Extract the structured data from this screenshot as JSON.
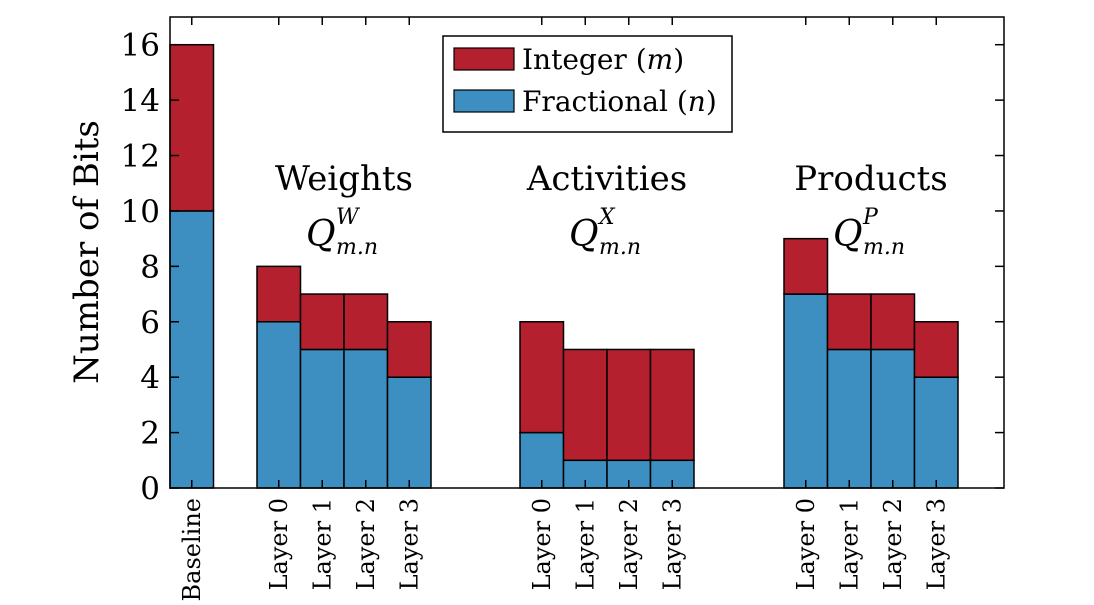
{
  "chart_data": {
    "type": "bar",
    "stacked": true,
    "title": "",
    "xlabel": "",
    "ylabel": "Number of Bits",
    "ylim": [
      0,
      17
    ],
    "yticks": [
      0,
      2,
      4,
      6,
      8,
      10,
      12,
      14,
      16
    ],
    "grid": false,
    "legend_position": "top-center",
    "categories": [
      "Baseline",
      "Layer 0",
      "Layer 1",
      "Layer 2",
      "Layer 3",
      "Layer 0",
      "Layer 1",
      "Layer 2",
      "Layer 3",
      "Layer 0",
      "Layer 1",
      "Layer 2",
      "Layer 3"
    ],
    "series": [
      {
        "name": "Fractional",
        "symbol": "n",
        "color": "#3d8fc1",
        "values": [
          10,
          6,
          5,
          5,
          4,
          2,
          1,
          1,
          1,
          7,
          5,
          5,
          4
        ]
      },
      {
        "name": "Integer",
        "symbol": "m",
        "color": "#b5202f",
        "values": [
          6,
          2,
          2,
          2,
          2,
          4,
          4,
          4,
          4,
          2,
          2,
          2,
          2
        ]
      }
    ],
    "groups": [
      {
        "name": "Weights",
        "symbol": "Q",
        "superscript": "W",
        "subscript": "m.n"
      },
      {
        "name": "Activities",
        "symbol": "Q",
        "superscript": "X",
        "subscript": "m.n"
      },
      {
        "name": "Products",
        "symbol": "Q",
        "superscript": "P",
        "subscript": "m.n"
      }
    ]
  }
}
